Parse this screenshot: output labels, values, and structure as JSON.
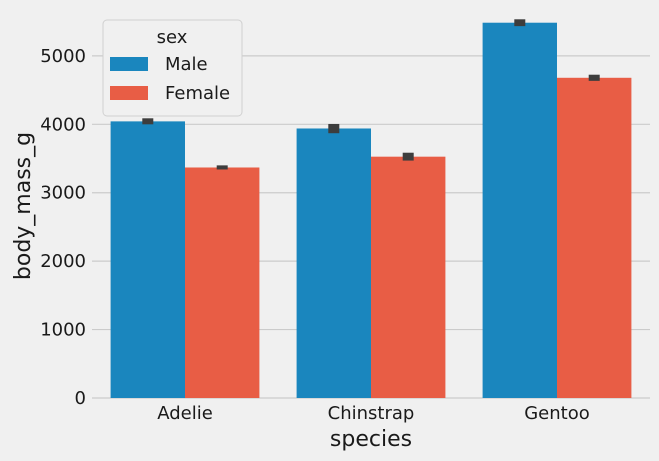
{
  "chart_data": {
    "type": "bar",
    "categories": [
      "Adelie",
      "Chinstrap",
      "Gentoo"
    ],
    "series": [
      {
        "name": "Male",
        "color": "#1a86be",
        "values": [
          4043,
          3939,
          5485
        ],
        "error": [
          [
            4000,
            4088
          ],
          [
            3870,
            4005
          ],
          [
            5435,
            5535
          ]
        ]
      },
      {
        "name": "Female",
        "color": "#e85d45",
        "values": [
          3369,
          3527,
          4680
        ],
        "error": [
          [
            3340,
            3400
          ],
          [
            3470,
            3585
          ],
          [
            4635,
            4725
          ]
        ]
      }
    ],
    "xlabel": "species",
    "ylabel": "body_mass_g",
    "ylim": [
      0,
      5700
    ],
    "yticks": [
      0,
      1000,
      2000,
      3000,
      4000,
      5000
    ],
    "grid": true,
    "legend": {
      "title": "sex",
      "placement": "top-left"
    }
  }
}
